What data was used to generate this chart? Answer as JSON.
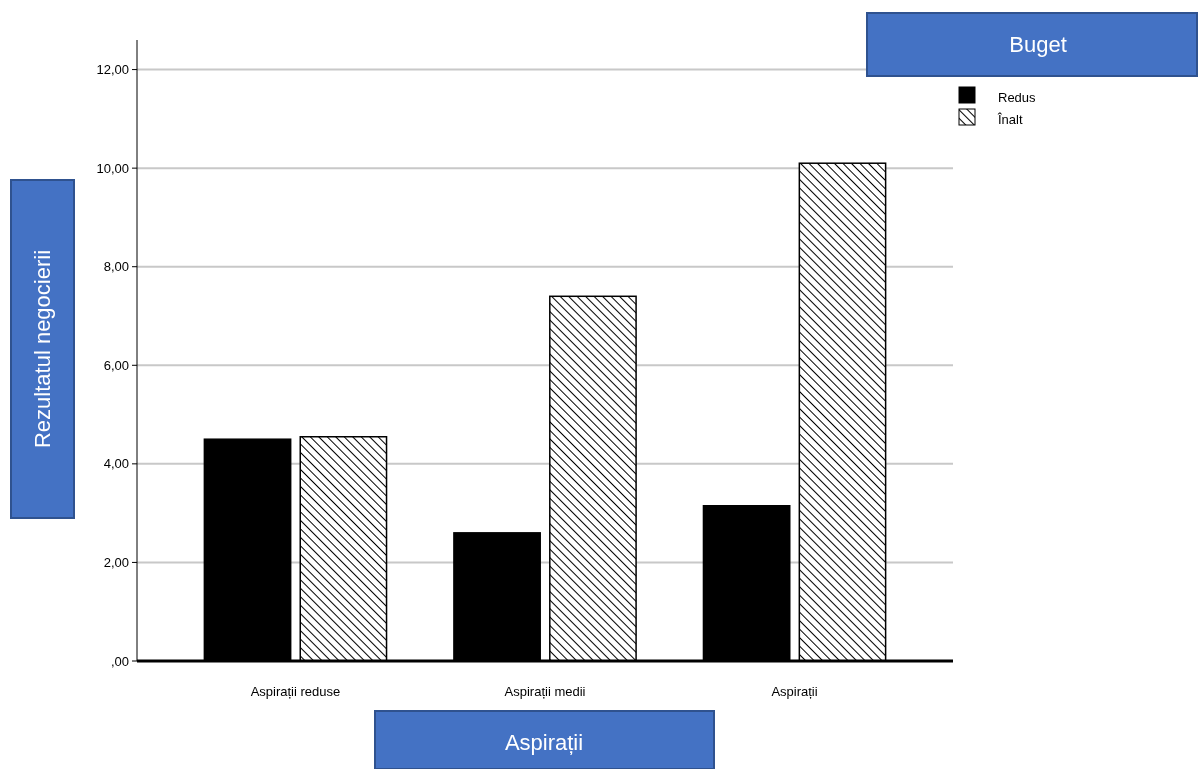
{
  "chart_data": {
    "type": "bar",
    "xlabel": "Aspirații",
    "ylabel": "Rezultatul negocierii",
    "legend_title": "Buget",
    "categories": [
      "Aspirații reduse",
      "Aspirații medii",
      "Aspirații"
    ],
    "series": [
      {
        "name": "Redus",
        "color": "#000000",
        "values": [
          4.5,
          2.6,
          3.15
        ]
      },
      {
        "name": "Înalt",
        "color": "#000000",
        "values": [
          4.55,
          7.4,
          10.1
        ]
      }
    ],
    "ylim": [
      0,
      12.6
    ],
    "yticks": [
      {
        "value": 0,
        "label": ",00"
      },
      {
        "value": 2,
        "label": "2,00"
      },
      {
        "value": 4,
        "label": "4,00"
      },
      {
        "value": 6,
        "label": "6,00"
      },
      {
        "value": 8,
        "label": "8,00"
      },
      {
        "value": 10,
        "label": "10,00"
      },
      {
        "value": 12,
        "label": "12,00"
      }
    ],
    "grid": "y",
    "legend": "top right"
  }
}
